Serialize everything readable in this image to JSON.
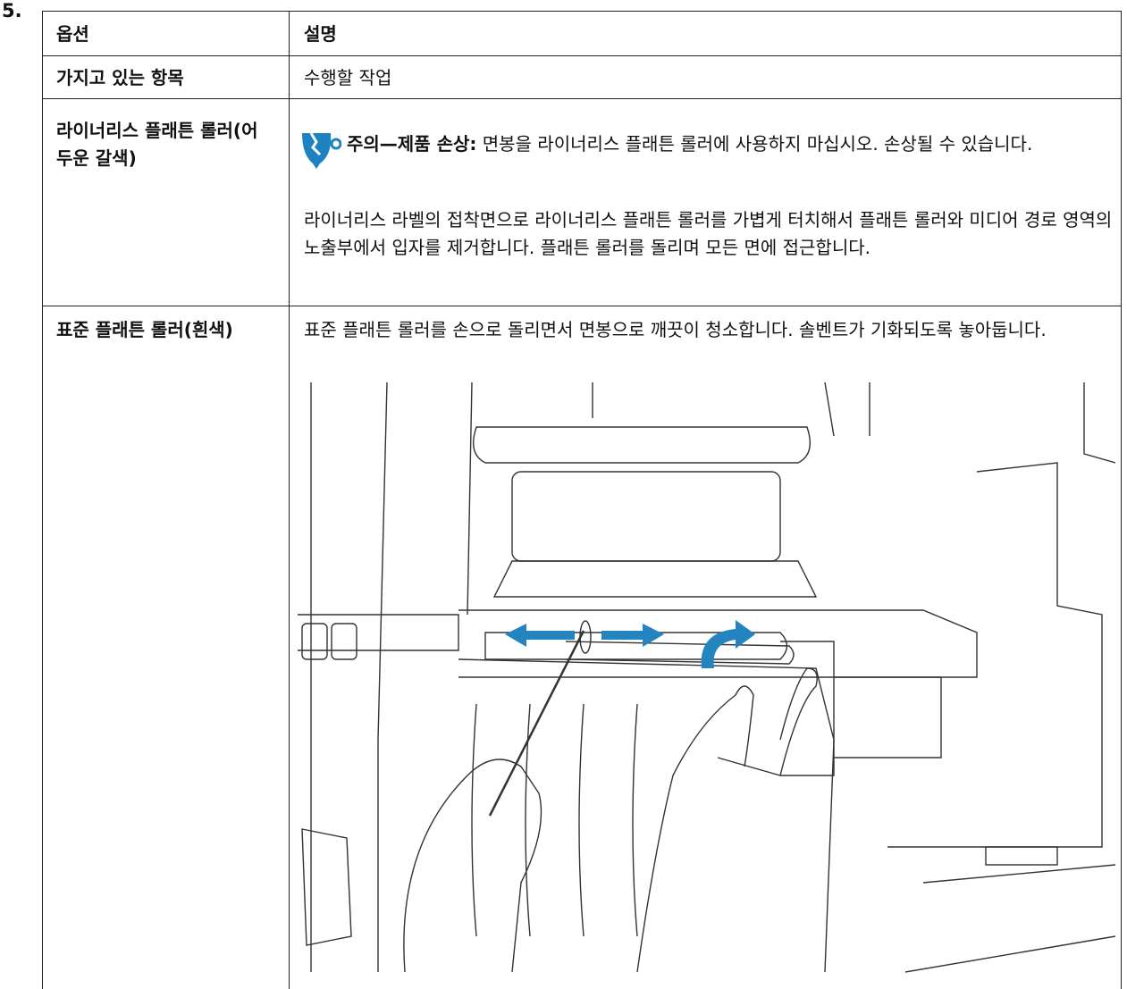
{
  "step": "5.",
  "table": {
    "header": [
      "옵션",
      "설명"
    ],
    "rows": [
      {
        "item": "가지고 있는 항목",
        "action": "수행할 작업"
      },
      {
        "item": "라이너리스 플래튼 롤러(어두운 갈색)",
        "caution": {
          "label": "주의—제품 손상:",
          "text": "면봉을 라이너리스 플래튼 롤러에 사용하지 마십시오. 손상될 수 있습니다."
        },
        "action": "라이너리스 라벨의 접착면으로 라이너리스 플래튼 롤러를 가볍게 터치해서 플래튼 롤러와 미디어 경로 영역의 노출부에서 입자를 제거합니다. 플래튼 롤러를 돌리며 모든 면에 접근합니다."
      },
      {
        "item": "표준 플래튼 롤러(흰색)",
        "action": "표준 플래튼 롤러를 손으로 돌리면서 면봉으로 깨끗이 청소합니다. 솔벤트가 기화되도록 놓아둡니다."
      }
    ]
  }
}
